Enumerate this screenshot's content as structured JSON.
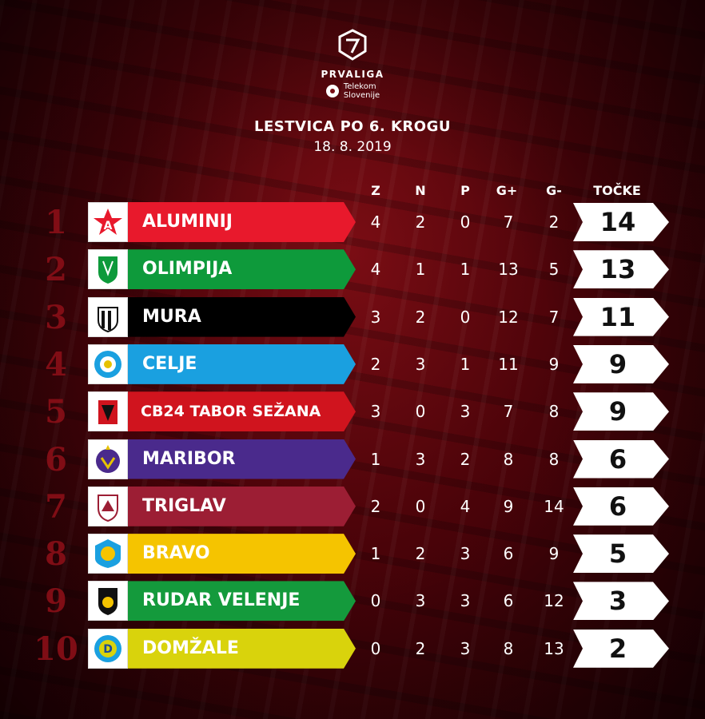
{
  "header": {
    "league": "PRVALIGA",
    "sponsor_line1": "Telekom",
    "sponsor_line2": "Slovenije",
    "title": "LESTVICA PO 6. KROGU",
    "date": "18. 8. 2019",
    "logo_icon": "league-shield-icon"
  },
  "columns": {
    "z": "Z",
    "n": "N",
    "p": "P",
    "gplus": "G+",
    "gminus": "G-",
    "points": "TOČKE"
  },
  "colors": {
    "background": "#4a0309",
    "rank": "#8a0f17",
    "aluminij": "#e8192c",
    "olimpija": "#0e9a3b",
    "mura": "#000000",
    "celje": "#1aa0e0",
    "tabor": "#d0141e",
    "maribor": "#4a2a8c",
    "triglav": "#9c1e34",
    "bravo": "#f5c400",
    "rudar": "#149a3c",
    "domzale": "#d9d30c"
  },
  "rows": [
    {
      "rank": "1",
      "club": "ALUMINIJ",
      "z": "4",
      "n": "2",
      "p": "0",
      "gplus": "7",
      "gminus": "2",
      "points": "14"
    },
    {
      "rank": "2",
      "club": "OLIMPIJA",
      "z": "4",
      "n": "1",
      "p": "1",
      "gplus": "13",
      "gminus": "5",
      "points": "13"
    },
    {
      "rank": "3",
      "club": "MURA",
      "z": "3",
      "n": "2",
      "p": "0",
      "gplus": "12",
      "gminus": "7",
      "points": "11"
    },
    {
      "rank": "4",
      "club": "CELJE",
      "z": "2",
      "n": "3",
      "p": "1",
      "gplus": "11",
      "gminus": "9",
      "points": "9"
    },
    {
      "rank": "5",
      "club": "CB24 TABOR SEŽANA",
      "z": "3",
      "n": "0",
      "p": "3",
      "gplus": "7",
      "gminus": "8",
      "points": "9"
    },
    {
      "rank": "6",
      "club": "MARIBOR",
      "z": "1",
      "n": "3",
      "p": "2",
      "gplus": "8",
      "gminus": "8",
      "points": "6"
    },
    {
      "rank": "7",
      "club": "TRIGLAV",
      "z": "2",
      "n": "0",
      "p": "4",
      "gplus": "9",
      "gminus": "14",
      "points": "6"
    },
    {
      "rank": "8",
      "club": "BRAVO",
      "z": "1",
      "n": "2",
      "p": "3",
      "gplus": "6",
      "gminus": "9",
      "points": "5"
    },
    {
      "rank": "9",
      "club": "RUDAR VELENJE",
      "z": "0",
      "n": "3",
      "p": "3",
      "gplus": "6",
      "gminus": "12",
      "points": "3"
    },
    {
      "rank": "10",
      "club": "DOMŽALE",
      "z": "0",
      "n": "2",
      "p": "3",
      "gplus": "8",
      "gminus": "13",
      "points": "2"
    }
  ]
}
